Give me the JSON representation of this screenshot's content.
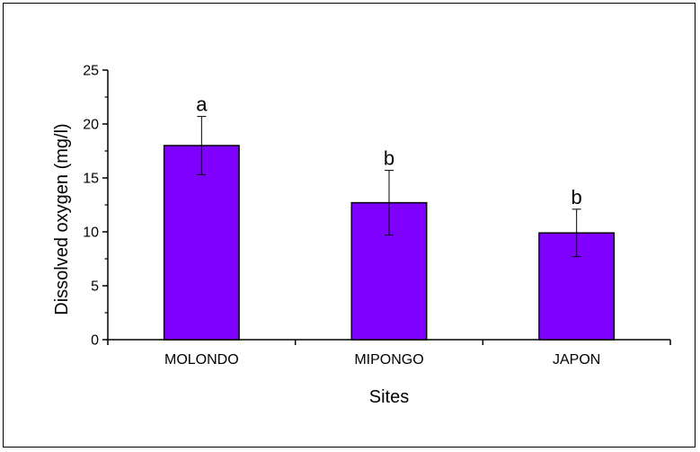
{
  "chart_data": {
    "type": "bar",
    "xlabel": "Sites",
    "ylabel": "Dissolved oxygen (mg/l)",
    "categories": [
      "MOLONDO",
      "MIPONGO",
      "JAPON"
    ],
    "values": [
      18.0,
      12.7,
      9.9
    ],
    "error": [
      2.7,
      3.0,
      2.2
    ],
    "significance_labels": [
      "a",
      "b",
      "b"
    ],
    "ylim": [
      0,
      25
    ],
    "yticks": [
      0,
      5,
      10,
      15,
      20,
      25
    ],
    "grid": false,
    "colors": {
      "bar_fill": "#7f00ff",
      "bar_stroke": "#000000"
    }
  }
}
